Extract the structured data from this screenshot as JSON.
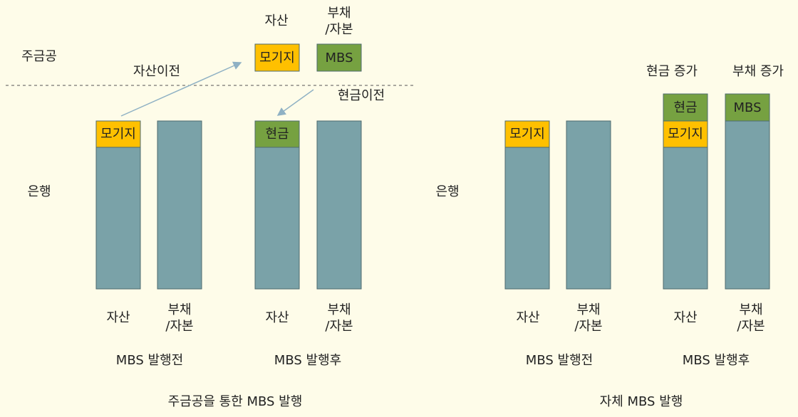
{
  "left": {
    "entity_top": "주금공",
    "entity_bank": "은행",
    "top_headers": [
      "자산",
      "부채",
      "/자본"
    ],
    "top_boxes": [
      "모기지",
      "MBS"
    ],
    "arrow_labels": [
      "자산이전",
      "현금이전"
    ],
    "bar_boxes": [
      "모기지",
      "현금"
    ],
    "axis_labels": [
      "자산",
      "부채",
      "/자본",
      "자산",
      "부채",
      "/자본"
    ],
    "group_labels": [
      "MBS 발행전",
      "MBS 발행후"
    ],
    "caption": "주금공을 통한 MBS 발행"
  },
  "right": {
    "entity_bank": "은행",
    "increase_labels": [
      "현금 증가",
      "부채 증가"
    ],
    "bar_boxes": [
      "모기지",
      "현금",
      "모기지",
      "MBS"
    ],
    "axis_labels": [
      "자산",
      "부채",
      "/자본",
      "자산",
      "부채",
      "/자본"
    ],
    "group_labels": [
      "MBS 발행전",
      "MBS 발행후"
    ],
    "caption": "자체 MBS 발행"
  }
}
